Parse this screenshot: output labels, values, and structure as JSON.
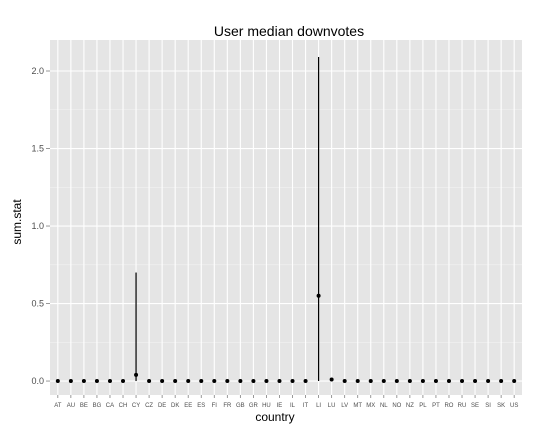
{
  "chart_data": {
    "type": "pointrange",
    "title": "User median downvotes",
    "xlabel": "country",
    "ylabel": "sum.stat",
    "ylim": [
      -0.09,
      2.2
    ],
    "yticks": [
      0.0,
      0.5,
      1.0,
      1.5,
      2.0
    ],
    "ytick_labels": [
      "0.0",
      "0.5",
      "1.0",
      "1.5",
      "2.0"
    ],
    "grid": true,
    "background": "#e5e5e5",
    "categories": [
      "AT",
      "AU",
      "BE",
      "BG",
      "CA",
      "CH",
      "CY",
      "CZ",
      "DE",
      "DK",
      "EE",
      "ES",
      "FI",
      "FR",
      "GB",
      "GR",
      "HU",
      "IE",
      "IL",
      "IT",
      "LI",
      "LU",
      "LV",
      "MT",
      "MX",
      "NL",
      "NO",
      "NZ",
      "PL",
      "PT",
      "RO",
      "RU",
      "SE",
      "SI",
      "SK",
      "US"
    ],
    "values": [
      0,
      0,
      0,
      0,
      0,
      0,
      0.04,
      0,
      0,
      0,
      0,
      0,
      0,
      0,
      0,
      0,
      0,
      0,
      0,
      0,
      0.55,
      0.01,
      0,
      0,
      0,
      0,
      0,
      0,
      0,
      0,
      0,
      0,
      0,
      0,
      0,
      0
    ],
    "ymin": [
      0,
      0,
      0,
      0,
      0,
      0,
      0,
      0,
      0,
      0,
      0,
      0,
      0,
      0,
      0,
      0,
      0,
      0,
      0,
      0,
      0,
      0,
      0,
      0,
      0,
      0,
      0,
      0,
      0,
      0,
      0,
      0,
      0,
      0,
      0,
      0
    ],
    "ymax": [
      0,
      0,
      0,
      0,
      0,
      0,
      0.7,
      0,
      0,
      0,
      0,
      0,
      0,
      0,
      0,
      0,
      0,
      0,
      0,
      0,
      2.09,
      0.01,
      0,
      0,
      0,
      0,
      0,
      0,
      0,
      0,
      0,
      0,
      0,
      0,
      0,
      0
    ]
  }
}
